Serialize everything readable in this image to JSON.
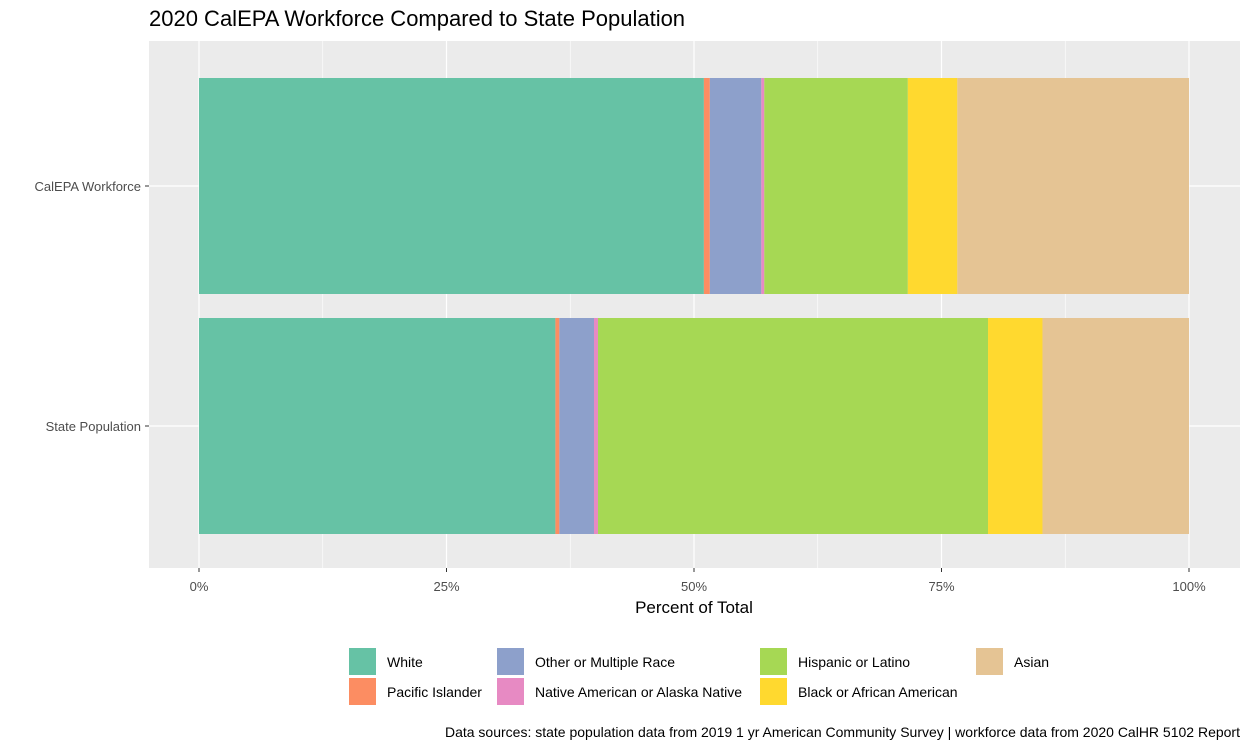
{
  "chart_data": {
    "type": "bar",
    "orientation": "horizontal",
    "stacked": true,
    "title": "2020 CalEPA Workforce Compared to State Population",
    "xlabel": "Percent of Total",
    "ylabel": "",
    "xlim": [
      0,
      1
    ],
    "x_ticks": [
      {
        "value": 0,
        "label": "0%"
      },
      {
        "value": 0.25,
        "label": "25%"
      },
      {
        "value": 0.5,
        "label": "50%"
      },
      {
        "value": 0.75,
        "label": "75%"
      },
      {
        "value": 1,
        "label": "100%"
      }
    ],
    "categories": [
      "CalEPA Workforce",
      "State Population"
    ],
    "series": [
      {
        "name": "White",
        "color": "#66c2a5",
        "values": [
          0.51,
          0.36
        ]
      },
      {
        "name": "Pacific Islander",
        "color": "#fc8d62",
        "values": [
          0.006,
          0.004
        ]
      },
      {
        "name": "Other or Multiple Race",
        "color": "#8da0cb",
        "values": [
          0.052,
          0.035
        ]
      },
      {
        "name": "Native American or Alaska Native",
        "color": "#e78ac3",
        "values": [
          0.003,
          0.004
        ]
      },
      {
        "name": "Hispanic or Latino",
        "color": "#a6d854",
        "values": [
          0.145,
          0.394
        ]
      },
      {
        "name": "Black or African American",
        "color": "#ffd92f",
        "values": [
          0.05,
          0.055
        ]
      },
      {
        "name": "Asian",
        "color": "#e5c494",
        "values": [
          0.234,
          0.148
        ]
      }
    ],
    "grid": true,
    "panel_background": "#ebebeb",
    "legend_position": "bottom",
    "caption": "Data sources: state population data from 2019 1 yr American Community Survey  |  workforce data from 2020 CalHR 5102 Report"
  }
}
